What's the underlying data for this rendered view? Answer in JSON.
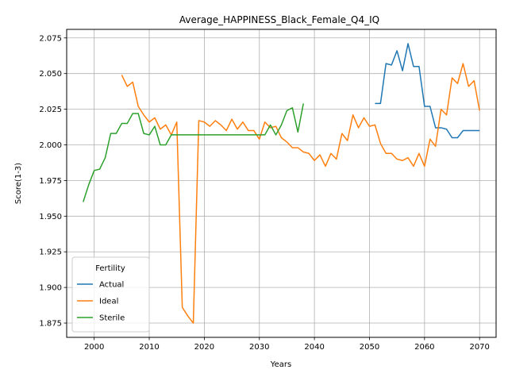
{
  "chart_data": {
    "type": "line",
    "title": "Average_HAPPINESS_Black_Female_Q4_IQ",
    "xlabel": "Years",
    "ylabel": "Score(1-3)",
    "xlim": [
      1995,
      2073
    ],
    "ylim": [
      1.865,
      2.081
    ],
    "xticks": [
      2000,
      2010,
      2020,
      2030,
      2040,
      2050,
      2060,
      2070
    ],
    "yticks": [
      1.875,
      1.9,
      1.925,
      1.95,
      1.975,
      2.0,
      2.025,
      2.05,
      2.075
    ],
    "ytick_labels": [
      "1.875",
      "1.900",
      "1.925",
      "1.950",
      "1.975",
      "2.000",
      "2.025",
      "2.050",
      "2.075"
    ],
    "grid": true,
    "legend": {
      "title": "Fertility",
      "placement": "lower-left"
    },
    "series": [
      {
        "name": "Actual",
        "color": "#1f77b4",
        "x": [
          2051,
          2052,
          2053,
          2054,
          2055,
          2056,
          2057,
          2058,
          2059,
          2060,
          2061,
          2062,
          2063,
          2064,
          2065,
          2066,
          2067,
          2068,
          2069,
          2070
        ],
        "y": [
          2.029,
          2.029,
          2.057,
          2.056,
          2.066,
          2.052,
          2.071,
          2.055,
          2.055,
          2.027,
          2.027,
          2.012,
          2.012,
          2.011,
          2.005,
          2.005,
          2.01,
          2.01,
          2.01,
          2.01
        ]
      },
      {
        "name": "Ideal",
        "color": "#ff7f0e",
        "x": [
          2005,
          2006,
          2007,
          2008,
          2009,
          2010,
          2011,
          2012,
          2013,
          2014,
          2015,
          2016,
          2017,
          2018,
          2019,
          2020,
          2021,
          2022,
          2023,
          2024,
          2025,
          2026,
          2027,
          2028,
          2029,
          2030,
          2031,
          2032,
          2033,
          2034,
          2035,
          2036,
          2037,
          2038,
          2039,
          2040,
          2041,
          2042,
          2043,
          2044,
          2045,
          2046,
          2047,
          2048,
          2049,
          2050,
          2051,
          2052,
          2053,
          2054,
          2055,
          2056,
          2057,
          2058,
          2059,
          2060,
          2061,
          2062,
          2063,
          2064,
          2065,
          2066,
          2067,
          2068,
          2069,
          2070
        ],
        "y": [
          2.049,
          2.041,
          2.044,
          2.027,
          2.021,
          2.016,
          2.019,
          2.011,
          2.014,
          2.007,
          2.016,
          1.886,
          1.88,
          1.875,
          2.017,
          2.016,
          2.013,
          2.017,
          2.014,
          2.01,
          2.018,
          2.011,
          2.016,
          2.01,
          2.01,
          2.004,
          2.016,
          2.012,
          2.013,
          2.005,
          2.002,
          1.998,
          1.998,
          1.995,
          1.994,
          1.989,
          1.993,
          1.985,
          1.994,
          1.99,
          2.008,
          2.003,
          2.021,
          2.012,
          2.019,
          2.013,
          2.014,
          2.001,
          1.994,
          1.994,
          1.99,
          1.989,
          1.991,
          1.985,
          1.994,
          1.985,
          2.004,
          1.999,
          2.025,
          2.021,
          2.047,
          2.043,
          2.057,
          2.041,
          2.045,
          2.024
        ]
      },
      {
        "name": "Sterile",
        "color": "#2ca02c",
        "x": [
          1998,
          1999,
          2000,
          2001,
          2002,
          2003,
          2004,
          2005,
          2006,
          2007,
          2008,
          2009,
          2010,
          2011,
          2012,
          2013,
          2014,
          2015,
          2016,
          2017,
          2018,
          2019,
          2020,
          2021,
          2022,
          2023,
          2024,
          2025,
          2026,
          2027,
          2028,
          2029,
          2030,
          2031,
          2032,
          2033,
          2034,
          2035,
          2036,
          2037,
          2038
        ],
        "y": [
          1.96,
          1.972,
          1.982,
          1.983,
          1.991,
          2.008,
          2.008,
          2.015,
          2.015,
          2.022,
          2.022,
          2.008,
          2.007,
          2.013,
          2.0,
          2.0,
          2.007,
          2.007,
          2.007,
          2.007,
          2.007,
          2.007,
          2.007,
          2.007,
          2.007,
          2.007,
          2.007,
          2.007,
          2.007,
          2.007,
          2.007,
          2.007,
          2.007,
          2.007,
          2.014,
          2.007,
          2.014,
          2.024,
          2.026,
          2.009,
          2.029
        ]
      }
    ]
  }
}
